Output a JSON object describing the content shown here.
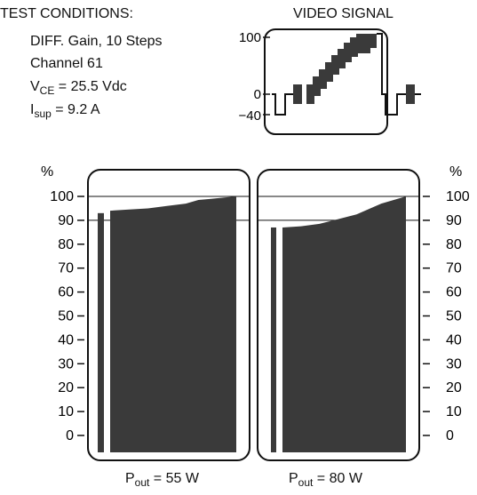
{
  "conditions": {
    "heading": "TEST CONDITIONS:",
    "line1": "DIFF. Gain, 10 Steps",
    "line2": "Channel 61",
    "vce": {
      "main": "V",
      "sub": "CE",
      "rest": " = 25.5 Vdc"
    },
    "isup": {
      "main": "I",
      "sub": "sup",
      "rest": " = 9.2 A"
    }
  },
  "video_signal": {
    "title": "VIDEO SIGNAL",
    "ticks": [
      "100",
      "0",
      "−40"
    ]
  },
  "colors": {
    "fill": "#3a3a3a",
    "stroke": "#111111"
  },
  "chart_data": [
    {
      "type": "area",
      "unit_left": "%",
      "yticks": [
        "100",
        "90",
        "80",
        "70",
        "60",
        "50",
        "40",
        "30",
        "20",
        "10",
        "0"
      ],
      "ylim": [
        0,
        100
      ],
      "gridlines": [
        100,
        90
      ],
      "bar_value": 93,
      "x": [
        0,
        0.15,
        0.3,
        0.45,
        0.6,
        0.7,
        0.8,
        1.0
      ],
      "y": [
        94,
        94.5,
        95,
        96,
        97,
        98.5,
        99,
        100
      ],
      "caption": {
        "main": "P",
        "sub": "out",
        "rest": " = 55 W"
      }
    },
    {
      "type": "area",
      "unit_right": "%",
      "yticks": [
        "100",
        "90",
        "80",
        "70",
        "60",
        "50",
        "40",
        "30",
        "20",
        "10",
        "0"
      ],
      "ylim": [
        0,
        100
      ],
      "gridlines": [
        100,
        90
      ],
      "bar_value": 87,
      "x": [
        0,
        0.15,
        0.3,
        0.45,
        0.6,
        0.8,
        1.0
      ],
      "y": [
        87,
        87.5,
        88.5,
        90.5,
        92.5,
        97,
        100
      ],
      "caption": {
        "main": "P",
        "sub": "out",
        "rest": " = 80 W"
      }
    }
  ]
}
